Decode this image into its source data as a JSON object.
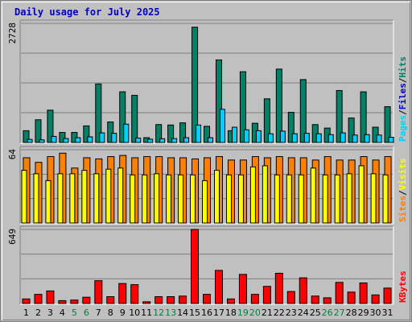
{
  "chart_data": {
    "type": "bar",
    "title": "Daily usage for July 2025",
    "days": [
      "1",
      "2",
      "3",
      "4",
      "5",
      "6",
      "7",
      "8",
      "9",
      "10",
      "11",
      "12",
      "13",
      "14",
      "15",
      "16",
      "17",
      "18",
      "19",
      "20",
      "21",
      "22",
      "23",
      "24",
      "25",
      "26",
      "27",
      "28",
      "29",
      "30",
      "31"
    ],
    "weekend_days": [
      "5",
      "6",
      "12",
      "13",
      "19",
      "20",
      "26",
      "27"
    ],
    "day_color": "#000000",
    "weekend_color": "#008040",
    "panels": [
      {
        "name": "hits-files-pages",
        "max_label": "2728",
        "max_value": 2728,
        "series": [
          {
            "name": "Pages",
            "color": "#00d0ff",
            "values": [
              70,
              60,
              140,
              90,
              110,
              130,
              220,
              210,
              420,
              100,
              75,
              85,
              90,
              110,
              400,
              110,
              760,
              350,
              290,
              270,
              200,
              260,
              200,
              210,
              200,
              180,
              220,
              170,
              180,
              170,
              120
            ]
          },
          {
            "name": "Files",
            "color": "#0000c0",
            "values": []
          },
          {
            "name": "Hits",
            "color": "#008066",
            "values": [
              270,
              520,
              740,
              230,
              230,
              380,
              1340,
              470,
              1160,
              1080,
              110,
              410,
              400,
              450,
              2640,
              370,
              1890,
              270,
              1620,
              440,
              1000,
              1680,
              690,
              1440,
              410,
              330,
              1190,
              560,
              1160,
              350,
              820
            ]
          }
        ],
        "label_separators": [
          "/",
          "/"
        ]
      },
      {
        "name": "visits-sites",
        "max_label": "64",
        "max_value": 64,
        "series": [
          {
            "name": "Sites",
            "color": "#ff8000",
            "values": [
              57,
              53,
              58,
              61,
              48,
              57,
              56,
              58,
              59,
              57,
              58,
              58,
              57,
              57,
              56,
              57,
              58,
              55,
              55,
              58,
              57,
              58,
              57,
              57,
              55,
              58,
              55,
              55,
              58,
              55,
              58
            ]
          },
          {
            "name": "Visits",
            "color": "#ffff00",
            "values": [
              46,
              43,
              37,
              43,
              43,
              46,
              43,
              47,
              48,
              42,
              42,
              43,
              42,
              42,
              42,
              37,
              46,
              42,
              42,
              49,
              50,
              42,
              42,
              42,
              48,
              42,
              42,
              43,
              50,
              43,
              42
            ]
          }
        ],
        "label_separators": [
          "/"
        ]
      },
      {
        "name": "kbytes",
        "max_label": "649",
        "max_value": 649,
        "series": [
          {
            "name": "KBytes",
            "color": "#ff0000",
            "values": [
              40,
              80,
              110,
              25,
              30,
              55,
              200,
              60,
              175,
              165,
              15,
              60,
              60,
              65,
              649,
              80,
              290,
              40,
              255,
              80,
              150,
              265,
              105,
              225,
              65,
              50,
              185,
              100,
              180,
              75,
              135
            ]
          }
        ],
        "label_separators": []
      }
    ]
  }
}
